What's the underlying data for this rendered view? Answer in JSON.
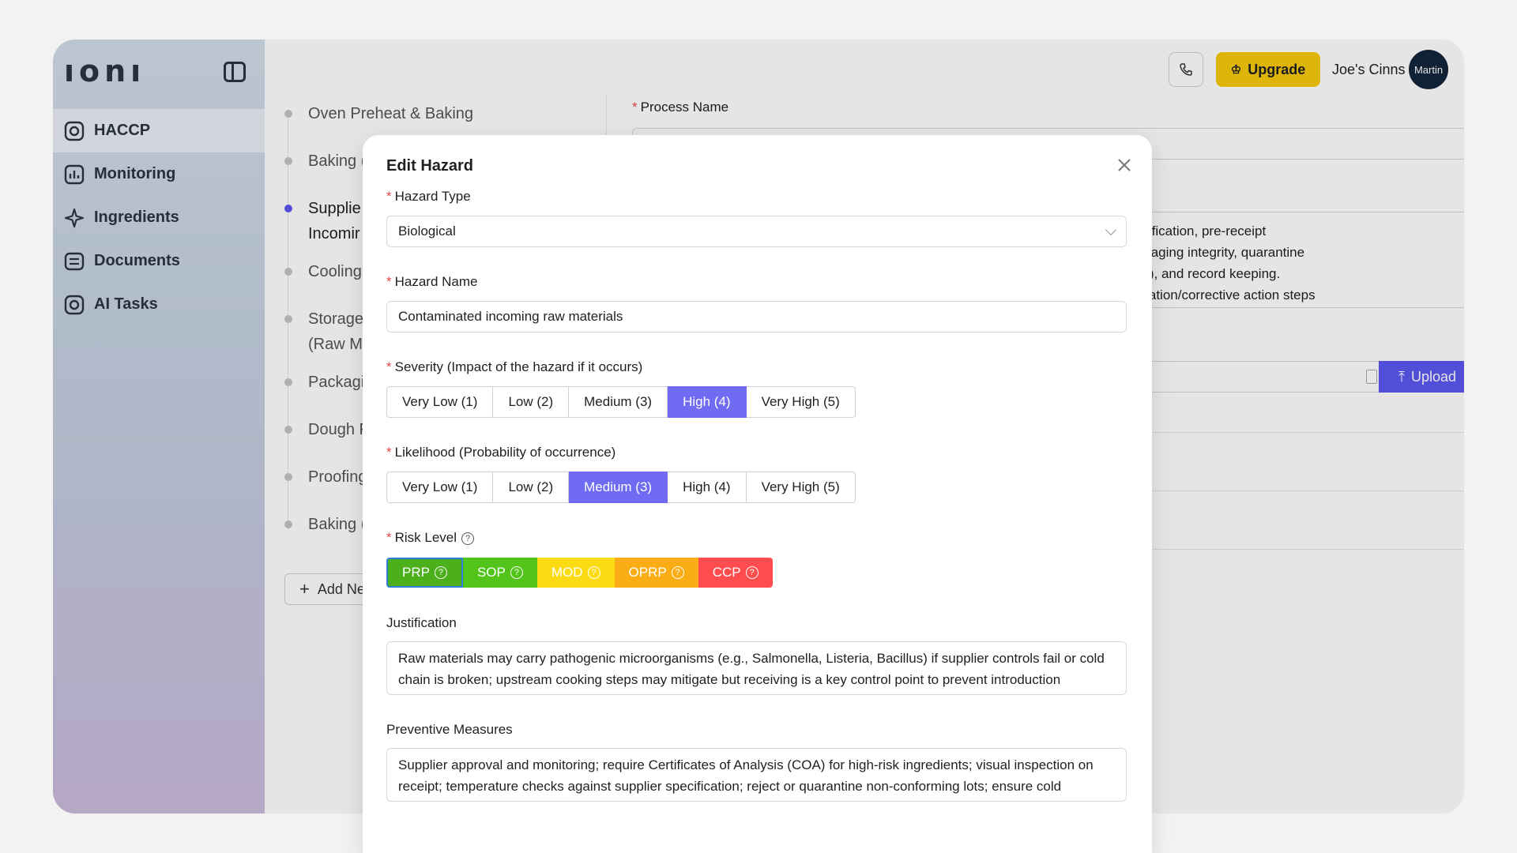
{
  "sidebar": {
    "logo": "ıonı",
    "items": [
      {
        "label": "HACCP",
        "icon": "haccp-icon"
      },
      {
        "label": "Monitoring",
        "icon": "chart-icon"
      },
      {
        "label": "Ingredients",
        "icon": "sparkle-icon"
      },
      {
        "label": "Documents",
        "icon": "documents-icon"
      },
      {
        "label": "AI Tasks",
        "icon": "ai-tasks-icon"
      }
    ]
  },
  "steps": [
    {
      "label": "Oven Preheat & Baking"
    },
    {
      "label": "Baking ("
    },
    {
      "label": "Supplie",
      "label2": "Incomir"
    },
    {
      "label": "Cooling"
    },
    {
      "label": "Storage",
      "label2": "(Raw M"
    },
    {
      "label": "Packagi"
    },
    {
      "label": "Dough F"
    },
    {
      "label": "Proofing"
    },
    {
      "label": "Baking ("
    }
  ],
  "add_new_label": "Add Ne",
  "process_name_label": "Process Name",
  "description_lines": [
    "supplier verification, pre-receipt",
    "cation, packaging integrity, quarantine",
    "segregation), and record keeping.",
    "follow escalation/corrective action steps"
  ],
  "upload_label": "Upload",
  "topbar": {
    "upgrade_label": "Upgrade",
    "user_name": "Joe's Cinns",
    "avatar_text": "Martin"
  },
  "modal": {
    "title": "Edit Hazard",
    "hazard_type_label": "Hazard Type",
    "hazard_type_value": "Biological",
    "hazard_name_label": "Hazard Name",
    "hazard_name_value": "Contaminated incoming raw materials",
    "severity_label": "Severity (Impact of the hazard if it occurs)",
    "severity_options": [
      "Very Low (1)",
      "Low (2)",
      "Medium (3)",
      "High (4)",
      "Very High (5)"
    ],
    "severity_selected": "High (4)",
    "likelihood_label": "Likelihood (Probability of occurrence)",
    "likelihood_options": [
      "Very Low (1)",
      "Low (2)",
      "Medium (3)",
      "High (4)",
      "Very High (5)"
    ],
    "likelihood_selected": "Medium (3)",
    "risk_level_label": "Risk Level",
    "risk_levels": [
      {
        "label": "PRP",
        "color": "#4caf1c"
      },
      {
        "label": "SOP",
        "color": "#52c41a"
      },
      {
        "label": "MOD",
        "color": "#fadb14"
      },
      {
        "label": "OPRP",
        "color": "#faad14"
      },
      {
        "label": "CCP",
        "color": "#ff4d4f"
      }
    ],
    "risk_selected": "PRP",
    "justification_label": "Justification",
    "justification_value": "Raw materials may carry pathogenic microorganisms (e.g., Salmonella, Listeria, Bacillus) if supplier controls fail or cold chain is broken; upstream cooking steps may mitigate but receiving is a key control point to prevent introduction",
    "preventive_label": "Preventive Measures",
    "preventive_value": "Supplier approval and monitoring; require Certificates of Analysis (COA) for high-risk ingredients; visual inspection on receipt; temperature checks against supplier specification; reject or quarantine non-conforming lots; ensure cold"
  },
  "colors": {
    "accent": "#5b57f0",
    "upgrade": "#f6c90a",
    "avatar_bg": "#14253b"
  }
}
